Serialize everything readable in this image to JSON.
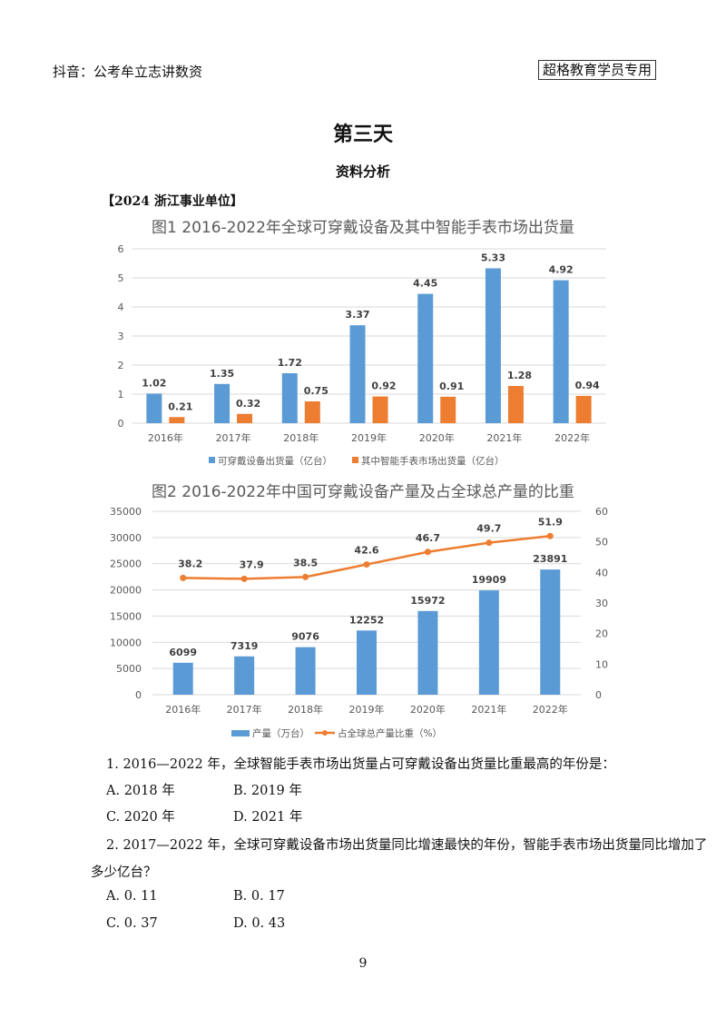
{
  "header": {
    "left_text": "抖音：公考牟立志讲数资",
    "right_badge": "超格教育学员专用"
  },
  "title": "第三天",
  "subtitle": "资料分析",
  "source_tag": "【2024 浙江事业单位】",
  "chart_data": [
    {
      "type": "bar",
      "title": "图1 2016-2022年全球可穿戴设备及其中智能手表市场出货量",
      "categories": [
        "2016年",
        "2017年",
        "2018年",
        "2019年",
        "2020年",
        "2021年",
        "2022年"
      ],
      "series": [
        {
          "name": "可穿戴设备出货量（亿台）",
          "color": "#5b9bd5",
          "values": [
            1.02,
            1.35,
            1.72,
            3.37,
            4.45,
            5.33,
            4.92
          ]
        },
        {
          "name": "其中智能手表市场出货量（亿台）",
          "color": "#ed7d31",
          "values": [
            0.21,
            0.32,
            0.75,
            0.92,
            0.91,
            1.28,
            0.94
          ]
        }
      ],
      "yticks": [
        0,
        1,
        2,
        3,
        4,
        5,
        6
      ],
      "ylim": [
        0,
        6
      ],
      "grid": true,
      "legend_position": "bottom",
      "xlabel": "",
      "ylabel": ""
    },
    {
      "type": "bar+line",
      "title": "图2 2016-2022年中国可穿戴设备产量及占全球总产量的比重",
      "categories": [
        "2016年",
        "2017年",
        "2018年",
        "2019年",
        "2020年",
        "2021年",
        "2022年"
      ],
      "series": [
        {
          "name": "产量（万台）",
          "type": "bar",
          "axis": "left",
          "color": "#5b9bd5",
          "values": [
            6099,
            7319,
            9076,
            12252,
            15972,
            19909,
            23891
          ]
        },
        {
          "name": "占全球总产量比重（%）",
          "type": "line",
          "axis": "right",
          "color": "#ed7d31",
          "values": [
            38.2,
            37.9,
            38.5,
            42.6,
            46.7,
            49.7,
            51.9
          ]
        }
      ],
      "yticks_left": [
        0,
        5000,
        10000,
        15000,
        20000,
        25000,
        30000,
        35000
      ],
      "ylim_left": [
        0,
        35000
      ],
      "yticks_right": [
        0,
        10,
        20,
        30,
        40,
        50,
        60
      ],
      "ylim_right": [
        0,
        60
      ],
      "grid": true,
      "legend_position": "bottom"
    }
  ],
  "questions": [
    {
      "stem": "1. 2016—2022 年，全球智能手表市场出货量占可穿戴设备出货量比重最高的年份是：",
      "options": {
        "A": "A. 2018 年",
        "B": "B. 2019 年",
        "C": "C. 2020 年",
        "D": "D. 2021 年"
      }
    },
    {
      "stem_line1": "2. 2017—2022 年，全球可穿戴设备市场出货量同比增速最快的年份，智能手表市场出货量同比增加了",
      "stem_line2": "多少亿台？",
      "options": {
        "A": "A. 0. 11",
        "B": "B. 0. 17",
        "C": "C. 0. 37",
        "D": "D. 0. 43"
      }
    }
  ],
  "page_number": "9"
}
